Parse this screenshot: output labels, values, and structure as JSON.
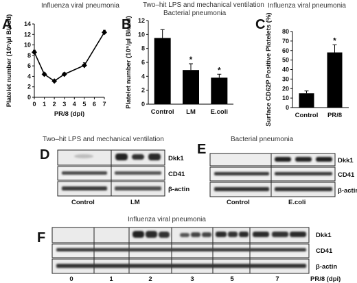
{
  "panels": {
    "A": {
      "letter": "A",
      "title": "Influenza viral pneumonia"
    },
    "B": {
      "letter": "B",
      "title_line1": "Two–hit LPS and mechanical ventilation",
      "title_line2": "Bacterial pneumonia"
    },
    "C": {
      "letter": "C",
      "title": "Influenza viral pneumonia"
    },
    "D": {
      "letter": "D",
      "title": "Two–hit LPS and mechanical ventilation",
      "rows": [
        "Dkk1",
        "CD41",
        "β-actin"
      ],
      "groups": [
        "Control",
        "LM"
      ]
    },
    "E": {
      "letter": "E",
      "title": "Bacterial pneumonia",
      "rows": [
        "Dkk1",
        "CD41",
        "β-actin"
      ],
      "groups": [
        "Control",
        "E.coli"
      ]
    },
    "F": {
      "letter": "F",
      "title": "Influenza viral pneumonia",
      "rows": [
        "Dkk1",
        "CD41",
        "β-actin"
      ],
      "lanes": [
        "0",
        "1",
        "2",
        "3",
        "5",
        "7"
      ],
      "xlabel": "PR/8 (dpi)"
    }
  },
  "chart_data": [
    {
      "panel": "A",
      "type": "line",
      "x": [
        0,
        1,
        2,
        3,
        5,
        7
      ],
      "y": [
        8.6,
        4.4,
        3.1,
        4.4,
        6.1,
        12.4
      ],
      "err": [
        0.4,
        0.3,
        0.2,
        0.3,
        0.5,
        0.4
      ],
      "xlim": [
        0,
        7
      ],
      "ylim": [
        0,
        14
      ],
      "xticks": [
        "0",
        "1",
        "2",
        "3",
        "4",
        "5",
        "6",
        "7"
      ],
      "yticks": [
        "0",
        "2",
        "4",
        "6",
        "8",
        "10",
        "12",
        "14"
      ],
      "xlabel": "PR/8 (dpi)",
      "ylabel": "Platelet number (10⁵/µl Blood)",
      "color": "#000000"
    },
    {
      "panel": "B",
      "type": "bar",
      "categories": [
        "Control",
        "LM",
        "E.coli"
      ],
      "values": [
        9.5,
        4.9,
        3.8
      ],
      "err": [
        1.2,
        0.9,
        0.5
      ],
      "significance": [
        "",
        "*",
        "*"
      ],
      "ylim": [
        0,
        12
      ],
      "yticks": [
        "0",
        "2",
        "4",
        "6",
        "8",
        "10",
        "12"
      ],
      "xlabel": "",
      "ylabel": "Platelet number (10⁵/µl Blood)",
      "color": "#000000"
    },
    {
      "panel": "C",
      "type": "bar",
      "categories": [
        "Control",
        "PR/8"
      ],
      "values": [
        15,
        58
      ],
      "err": [
        2.5,
        8
      ],
      "significance": [
        "",
        "*"
      ],
      "ylim": [
        0,
        80
      ],
      "yticks": [
        "0",
        "10",
        "20",
        "30",
        "40",
        "50",
        "60",
        "70",
        "80"
      ],
      "xlabel": "",
      "ylabel": "Surface CD62P Positive Platelets (%)",
      "color": "#000000"
    }
  ]
}
